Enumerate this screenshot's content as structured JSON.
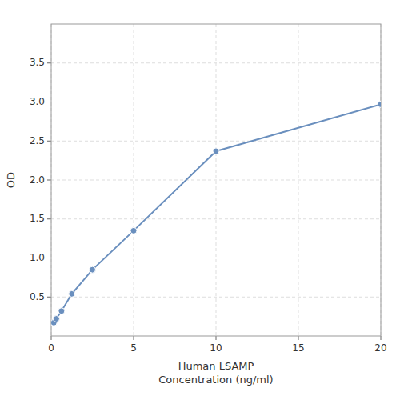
{
  "chart_data": {
    "type": "line",
    "xlabel": "Human LSAMP\nConcentration (ng/ml)",
    "ylabel": "OD",
    "x": [
      0.156,
      0.313,
      0.625,
      1.25,
      2.5,
      5,
      10,
      20
    ],
    "values": [
      0.171,
      0.22,
      0.32,
      0.54,
      0.85,
      1.35,
      2.37,
      2.97
    ],
    "color": "#6a8fbe",
    "marker": "circle",
    "xlim": [
      0,
      20
    ],
    "ylim": [
      0,
      4.0
    ],
    "xticks": [
      0,
      5,
      10,
      15,
      20
    ],
    "yticks": [
      0.5,
      {
        "value": 1,
        "label": "1.0"
      },
      1.5,
      {
        "value": 2,
        "label": "2.0"
      },
      2.5,
      {
        "value": 3,
        "label": "3.0"
      },
      3.5
    ],
    "grid": true
  }
}
